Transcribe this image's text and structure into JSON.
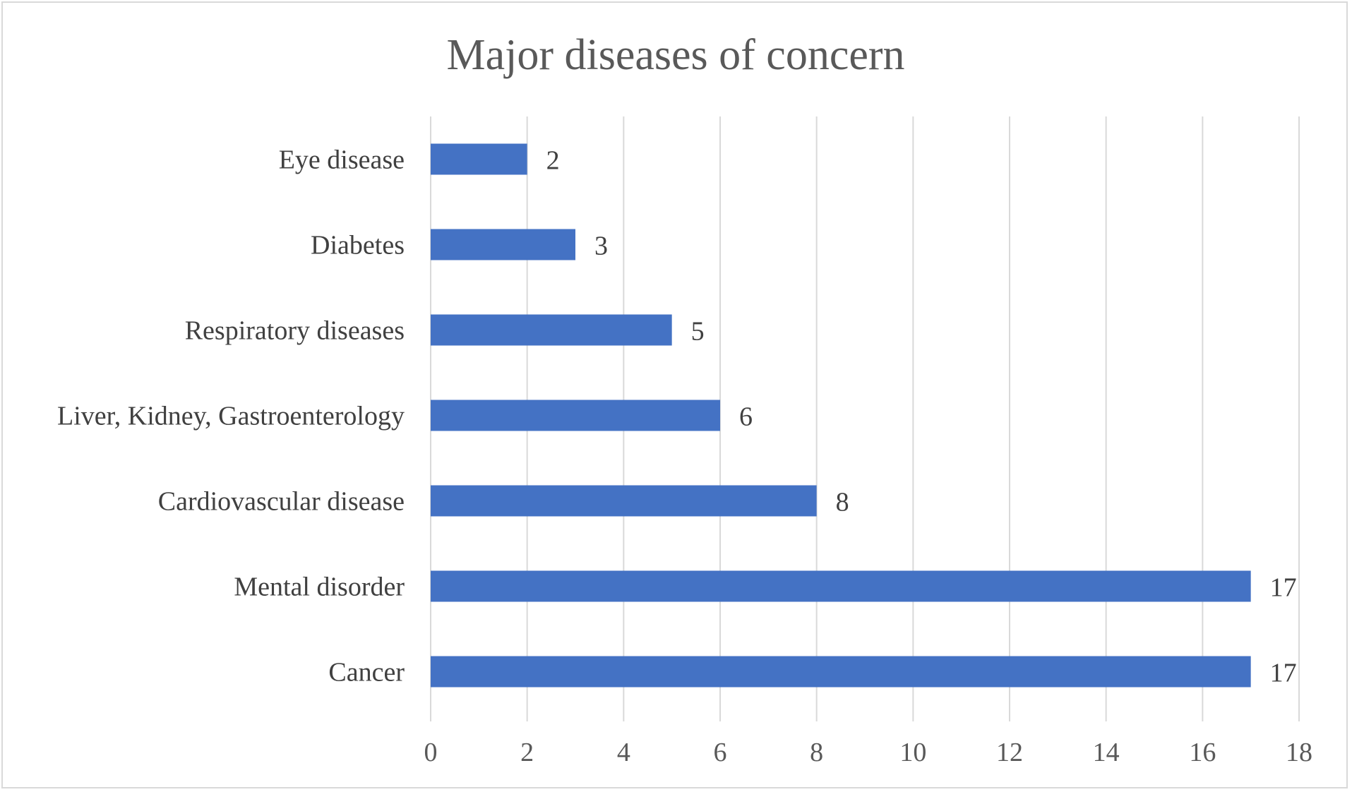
{
  "chart_data": {
    "type": "bar",
    "orientation": "horizontal",
    "title": "Major diseases of concern",
    "xlabel": "",
    "ylabel": "",
    "categories": [
      "Cancer",
      "Mental disorder",
      "Cardiovascular disease",
      "Liver, Kidney, Gastroenterology",
      "Respiratory diseases",
      "Diabetes",
      "Eye disease"
    ],
    "values": [
      17,
      17,
      8,
      6,
      5,
      3,
      2
    ],
    "xlim": [
      0,
      18
    ],
    "xticks": [
      0,
      2,
      4,
      6,
      8,
      10,
      12,
      14,
      16,
      18
    ],
    "grid": "vertical",
    "data_labels": true,
    "legend": "none",
    "colors": {
      "bar": "#4472c4",
      "grid": "#d9d9d9",
      "frame": "#d9d9d9"
    }
  }
}
